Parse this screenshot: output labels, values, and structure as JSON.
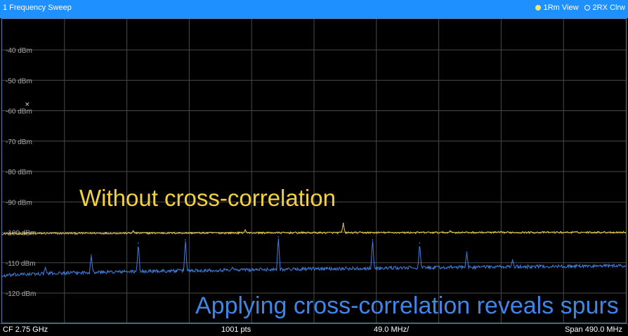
{
  "window": {
    "title": "1 Frequency Sweep"
  },
  "traces_legend": [
    {
      "label": "1Rm View",
      "color": "#f5e663",
      "icon": "filled-dot-icon"
    },
    {
      "label": "2RX Clrw",
      "color": "#ffffff",
      "icon": "hollow-dot-icon"
    }
  ],
  "overlay": {
    "without_label": "Without cross-correlation",
    "with_label": "Applying cross-correlation reveals spurs",
    "without_color": "#f2d140",
    "with_color": "#3f86e8"
  },
  "status": {
    "cf": "CF 2.75 GHz",
    "points": "1001 pts",
    "div": "49.0 MHz/",
    "span": "Span 490.0 MHz"
  },
  "chart_data": {
    "type": "line",
    "title": "1 Frequency Sweep",
    "xlabel": "",
    "ylabel": "",
    "x_range_mhz": [
      2505,
      2995
    ],
    "ylim": [
      -130,
      -30
    ],
    "y_ticks": [
      "-40 dBm",
      "-50 dBm",
      "-60 dBm",
      "-70 dBm",
      "-80 dBm",
      "-90 dBm",
      "-100 dBm",
      "-110 dBm",
      "-120 dBm"
    ],
    "y_tick_values": [
      -40,
      -50,
      -60,
      -70,
      -80,
      -90,
      -100,
      -110,
      -120
    ],
    "grid": true,
    "x_divisions": 10,
    "series": [
      {
        "name": "1Rm View",
        "color": "#f2d140",
        "baseline_start_dbm": -100.5,
        "baseline_end_dbm": -100,
        "spurs": [
          {
            "x_mhz": 2608,
            "y_dbm": -99.5
          },
          {
            "x_mhz": 2696,
            "y_dbm": -99.2
          },
          {
            "x_mhz": 2773,
            "y_dbm": -97
          },
          {
            "x_mhz": 2857,
            "y_dbm": -99.5
          }
        ]
      },
      {
        "name": "2RX Clrw",
        "color": "#3f7fe0",
        "baseline_start_dbm": -114.5,
        "baseline_end_dbm": -111,
        "spurs": [
          {
            "x_mhz": 2539,
            "y_dbm": -111.5
          },
          {
            "x_mhz": 2575,
            "y_dbm": -107.5
          },
          {
            "x_mhz": 2612,
            "y_dbm": -103.5
          },
          {
            "x_mhz": 2649,
            "y_dbm": -102.5
          },
          {
            "x_mhz": 2686,
            "y_dbm": -111.5
          },
          {
            "x_mhz": 2722,
            "y_dbm": -101.5
          },
          {
            "x_mhz": 2760,
            "y_dbm": -112
          },
          {
            "x_mhz": 2796,
            "y_dbm": -102.5
          },
          {
            "x_mhz": 2833,
            "y_dbm": -103.5
          },
          {
            "x_mhz": 2870,
            "y_dbm": -106.5
          },
          {
            "x_mhz": 2880,
            "y_dbm": -111.5
          },
          {
            "x_mhz": 2906,
            "y_dbm": -109
          }
        ]
      }
    ]
  }
}
